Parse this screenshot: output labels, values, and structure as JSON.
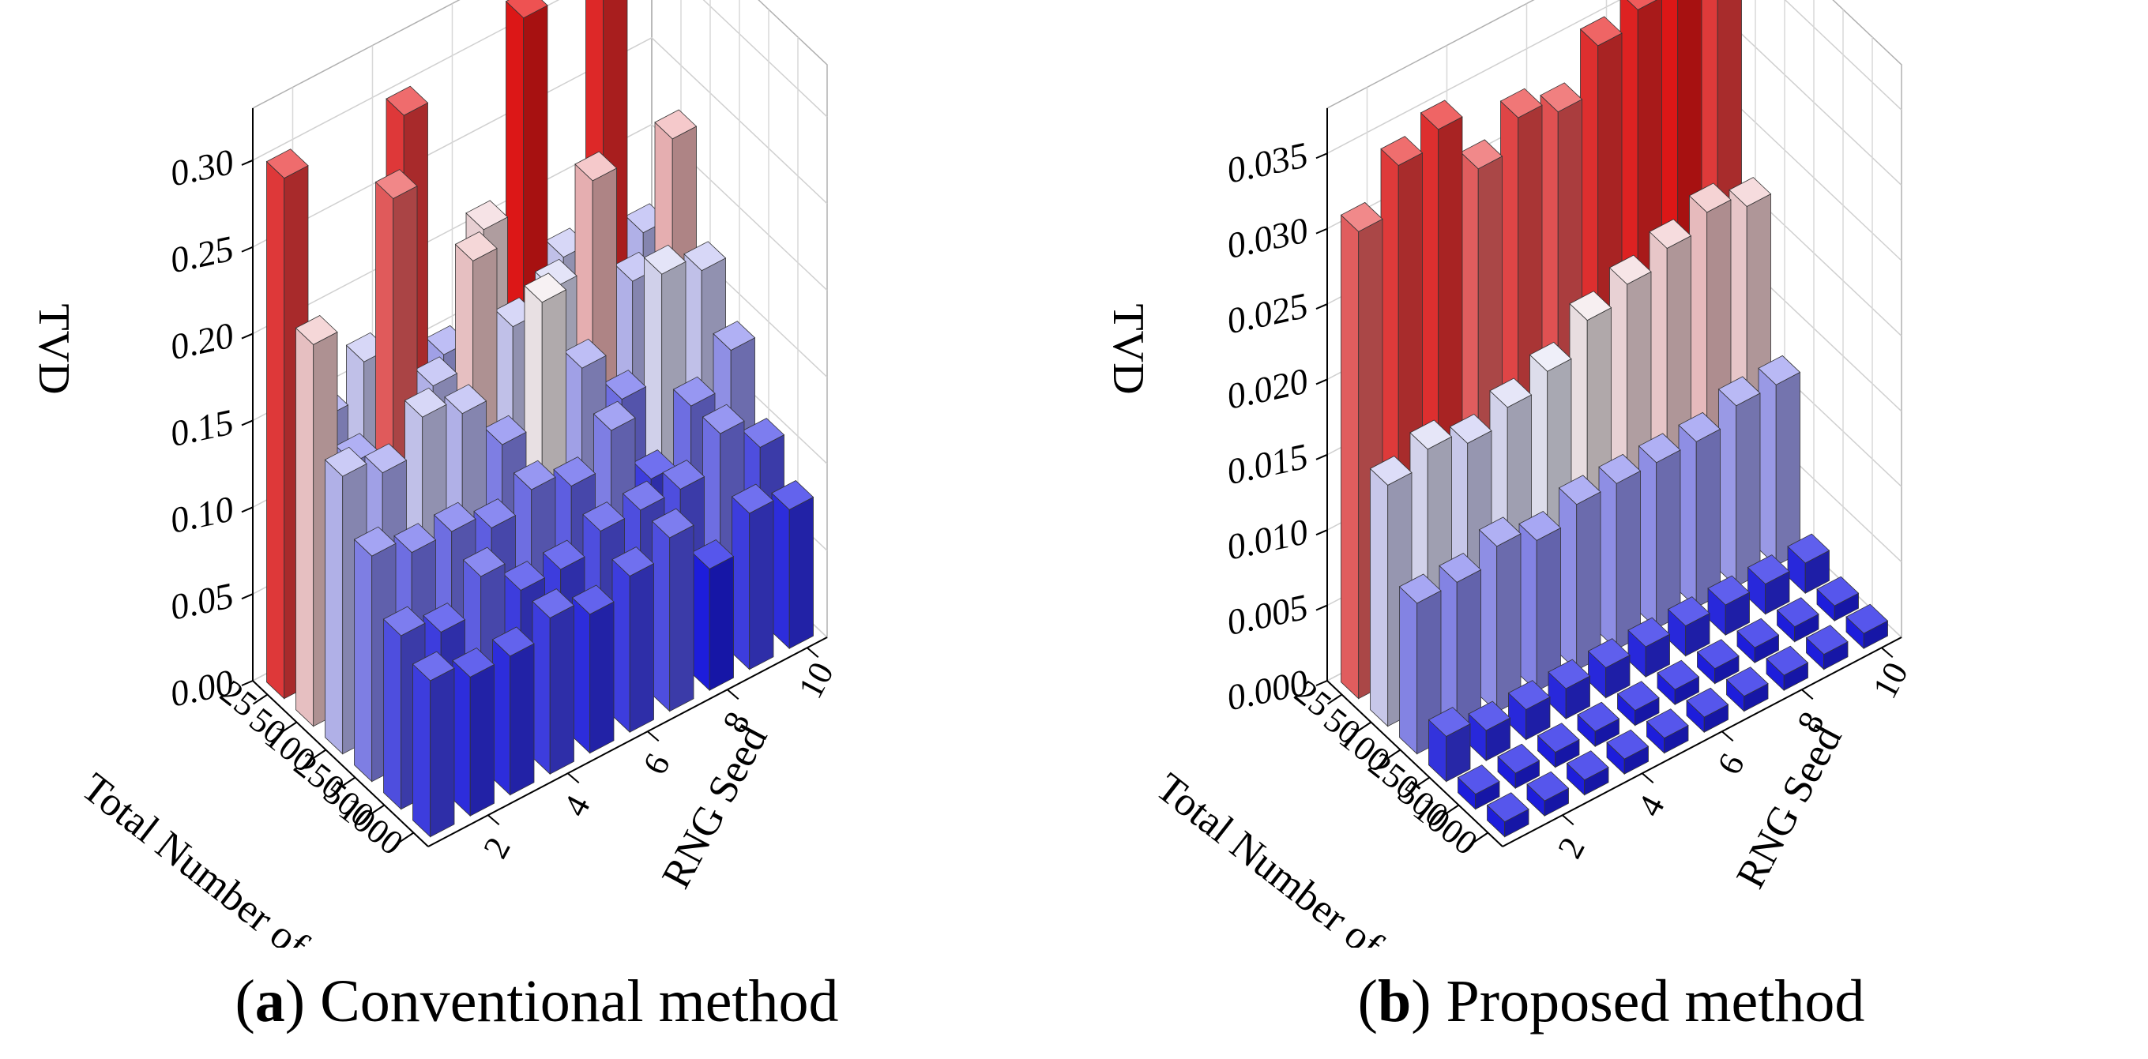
{
  "chart_data": [
    {
      "type": "bar3d",
      "caption": {
        "prefix": "(",
        "letter": "a",
        "text": ") Conventional method"
      },
      "zlabel": "TVD",
      "xlabel": "Total Number of Grains",
      "ylabel": "RNG Seed",
      "x_ticks": [
        "25",
        "50",
        "100",
        "250",
        "500",
        "1000"
      ],
      "y_ticks": [
        "2",
        "4",
        "6",
        "8",
        "10"
      ],
      "z_ticks": [
        "0.00",
        "0.05",
        "0.10",
        "0.15",
        "0.20",
        "0.25",
        "0.30"
      ],
      "zlim": [
        0,
        0.33
      ],
      "categories_x": [
        25,
        50,
        100,
        250,
        500,
        1000
      ],
      "categories_y": [
        1,
        2,
        3,
        4,
        5,
        6,
        7,
        8,
        9,
        10
      ],
      "values": [
        [
          0.3,
          0.15,
          0.17,
          0.3,
          0.15,
          0.21,
          0.32,
          0.17,
          0.31,
          0.16
        ],
        [
          0.22,
          0.14,
          0.28,
          0.16,
          0.22,
          0.17,
          0.18,
          0.23,
          0.16,
          0.23
        ],
        [
          0.16,
          0.15,
          0.17,
          0.16,
          0.13,
          0.2,
          0.15,
          0.12,
          0.18,
          0.17
        ],
        [
          0.13,
          0.12,
          0.12,
          0.11,
          0.12,
          0.11,
          0.13,
          0.09,
          0.12,
          0.14
        ],
        [
          0.1,
          0.09,
          0.11,
          0.09,
          0.09,
          0.1,
          0.1,
          0.1,
          0.12,
          0.1
        ],
        [
          0.09,
          0.08,
          0.08,
          0.09,
          0.08,
          0.09,
          0.1,
          0.07,
          0.09,
          0.08
        ]
      ],
      "colormap": {
        "low": "#1e1ee6",
        "mid": "#f5f5f8",
        "high": "#e81818"
      }
    },
    {
      "type": "bar3d",
      "caption": {
        "prefix": "(",
        "letter": "b",
        "text": ") Proposed method"
      },
      "zlabel": "TVD",
      "xlabel": "Total Number of Grains",
      "ylabel": "RNG Seed",
      "x_ticks": [
        "25",
        "50",
        "100",
        "250",
        "500",
        "1000"
      ],
      "y_ticks": [
        "2",
        "4",
        "6",
        "8",
        "10"
      ],
      "z_ticks": [
        "0.000",
        "0.005",
        "0.010",
        "0.015",
        "0.020",
        "0.025",
        "0.030",
        "0.035"
      ],
      "zlim": [
        0,
        0.038
      ],
      "categories_x": [
        25,
        50,
        100,
        250,
        500,
        1000
      ],
      "categories_y": [
        1,
        2,
        3,
        4,
        5,
        6,
        7,
        8,
        9,
        10
      ],
      "values": [
        [
          0.031,
          0.034,
          0.035,
          0.031,
          0.033,
          0.032,
          0.035,
          0.036,
          0.037,
          0.034
        ],
        [
          0.016,
          0.017,
          0.016,
          0.017,
          0.018,
          0.02,
          0.021,
          0.022,
          0.023,
          0.022
        ],
        [
          0.01,
          0.01,
          0.011,
          0.01,
          0.011,
          0.011,
          0.011,
          0.011,
          0.012,
          0.012
        ],
        [
          0.003,
          0.002,
          0.002,
          0.002,
          0.002,
          0.002,
          0.002,
          0.002,
          0.002,
          0.002
        ],
        [
          0.001,
          0.001,
          0.001,
          0.001,
          0.001,
          0.001,
          0.001,
          0.001,
          0.001,
          0.001
        ],
        [
          0.001,
          0.001,
          0.001,
          0.001,
          0.001,
          0.001,
          0.001,
          0.001,
          0.001,
          0.001
        ]
      ],
      "colormap": {
        "low": "#1e1ee6",
        "mid": "#f5f5f8",
        "high": "#e81818"
      }
    }
  ]
}
